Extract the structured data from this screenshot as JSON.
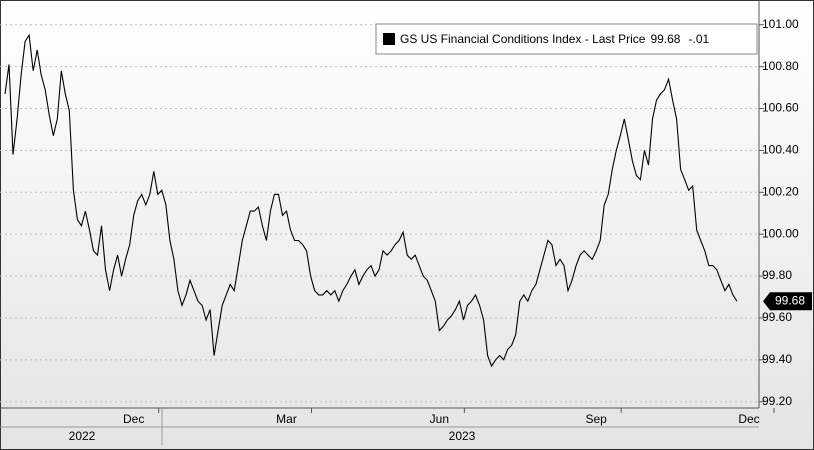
{
  "chart_data": {
    "type": "line",
    "categories": [
      null,
      null,
      null,
      null,
      null,
      null,
      null,
      null,
      null,
      null,
      null,
      null,
      null,
      null,
      null,
      null,
      null,
      null,
      null,
      null,
      null,
      null,
      null,
      null,
      null,
      null,
      null,
      null,
      null,
      null,
      null,
      null,
      "Dec",
      null,
      null,
      null,
      null,
      null,
      null,
      null,
      null,
      null,
      null,
      null,
      null,
      null,
      null,
      null,
      null,
      null,
      null,
      null,
      null,
      null,
      null,
      null,
      null,
      null,
      null,
      null,
      null,
      null,
      null,
      null,
      null,
      null,
      null,
      null,
      null,
      null,
      "Mar",
      null,
      null,
      null,
      null,
      null,
      null,
      null,
      null,
      null,
      null,
      null,
      null,
      null,
      null,
      null,
      null,
      null,
      null,
      null,
      null,
      null,
      null,
      null,
      null,
      null,
      null,
      null,
      null,
      null,
      null,
      null,
      null,
      null,
      null,
      null,
      null,
      null,
      "Jun",
      null,
      null,
      null,
      null,
      null,
      null,
      null,
      null,
      null,
      null,
      null,
      null,
      null,
      null,
      null,
      null,
      null,
      null,
      null,
      null,
      null,
      null,
      null,
      null,
      null,
      null,
      null,
      null,
      null,
      null,
      null,
      null,
      null,
      null,
      null,
      null,
      null,
      null,
      "Sep",
      null,
      null,
      null,
      null,
      null,
      null,
      null,
      null,
      null,
      null,
      null,
      null,
      null,
      null,
      null,
      null,
      null,
      null,
      null,
      null,
      null,
      null,
      null,
      null,
      null,
      null,
      null,
      null,
      null,
      null,
      null,
      null,
      null,
      null,
      null,
      null,
      null,
      "Dec"
    ],
    "years": [
      "2022",
      "2023"
    ],
    "series": [
      {
        "name": "GS US Financial Conditions Index - Last Price",
        "color": "#000000",
        "values": [
          100.67,
          100.81,
          100.38,
          100.55,
          100.76,
          100.92,
          100.95,
          100.78,
          100.88,
          100.76,
          100.69,
          100.57,
          100.47,
          100.55,
          100.78,
          100.67,
          100.59,
          100.21,
          100.07,
          100.04,
          100.11,
          100.02,
          99.92,
          99.9,
          100.04,
          99.83,
          99.73,
          99.83,
          99.9,
          99.8,
          99.88,
          99.95,
          100.09,
          100.16,
          100.19,
          100.14,
          100.19,
          100.3,
          100.19,
          100.21,
          100.14,
          99.97,
          99.88,
          99.73,
          99.66,
          99.71,
          99.78,
          99.73,
          99.68,
          99.66,
          99.59,
          99.64,
          99.42,
          99.54,
          99.66,
          99.71,
          99.76,
          99.73,
          99.85,
          99.97,
          100.04,
          100.11,
          100.11,
          100.13,
          100.04,
          99.97,
          100.11,
          100.19,
          100.19,
          100.09,
          100.11,
          100.02,
          99.97,
          99.97,
          99.95,
          99.92,
          99.8,
          99.73,
          99.71,
          99.71,
          99.73,
          99.71,
          99.73,
          99.68,
          99.73,
          99.76,
          99.8,
          99.83,
          99.76,
          99.8,
          99.83,
          99.85,
          99.8,
          99.83,
          99.92,
          99.9,
          99.92,
          99.95,
          99.97,
          100.01,
          99.9,
          99.88,
          99.9,
          99.85,
          99.8,
          99.78,
          99.73,
          99.68,
          99.54,
          99.56,
          99.59,
          99.61,
          99.64,
          99.68,
          99.59,
          99.66,
          99.68,
          99.71,
          99.66,
          99.59,
          99.42,
          99.37,
          99.4,
          99.42,
          99.4,
          99.45,
          99.47,
          99.52,
          99.68,
          99.71,
          99.68,
          99.73,
          99.76,
          99.83,
          99.9,
          99.97,
          99.95,
          99.85,
          99.88,
          99.85,
          99.73,
          99.78,
          99.85,
          99.9,
          99.92,
          99.9,
          99.88,
          99.92,
          99.97,
          100.14,
          100.19,
          100.31,
          100.4,
          100.47,
          100.55,
          100.45,
          100.35,
          100.28,
          100.26,
          100.4,
          100.33,
          100.55,
          100.64,
          100.67,
          100.69,
          100.74,
          100.64,
          100.55,
          100.31,
          100.26,
          100.21,
          100.23,
          100.02,
          99.97,
          99.92,
          99.85,
          99.85,
          99.83,
          99.78,
          99.73,
          99.76,
          99.71,
          99.68,
          null,
          null,
          null
        ]
      }
    ],
    "last_price": 99.68,
    "change": "-.01",
    "ylim": [
      99.17,
      101.08
    ],
    "yticks": [
      {
        "value": 99.2,
        "label": "99.20"
      },
      {
        "value": 99.4,
        "label": "99.40"
      },
      {
        "value": 99.6,
        "label": "99.60"
      },
      {
        "value": 99.8,
        "label": "99.80"
      },
      {
        "value": 100.0,
        "label": "100.00"
      },
      {
        "value": 100.2,
        "label": "100.20"
      },
      {
        "value": 100.4,
        "label": "100.40"
      },
      {
        "value": 100.6,
        "label": "100.60"
      },
      {
        "value": 100.8,
        "label": "100.80"
      },
      {
        "value": 101.0,
        "label": "101.00"
      }
    ],
    "grid": true
  }
}
